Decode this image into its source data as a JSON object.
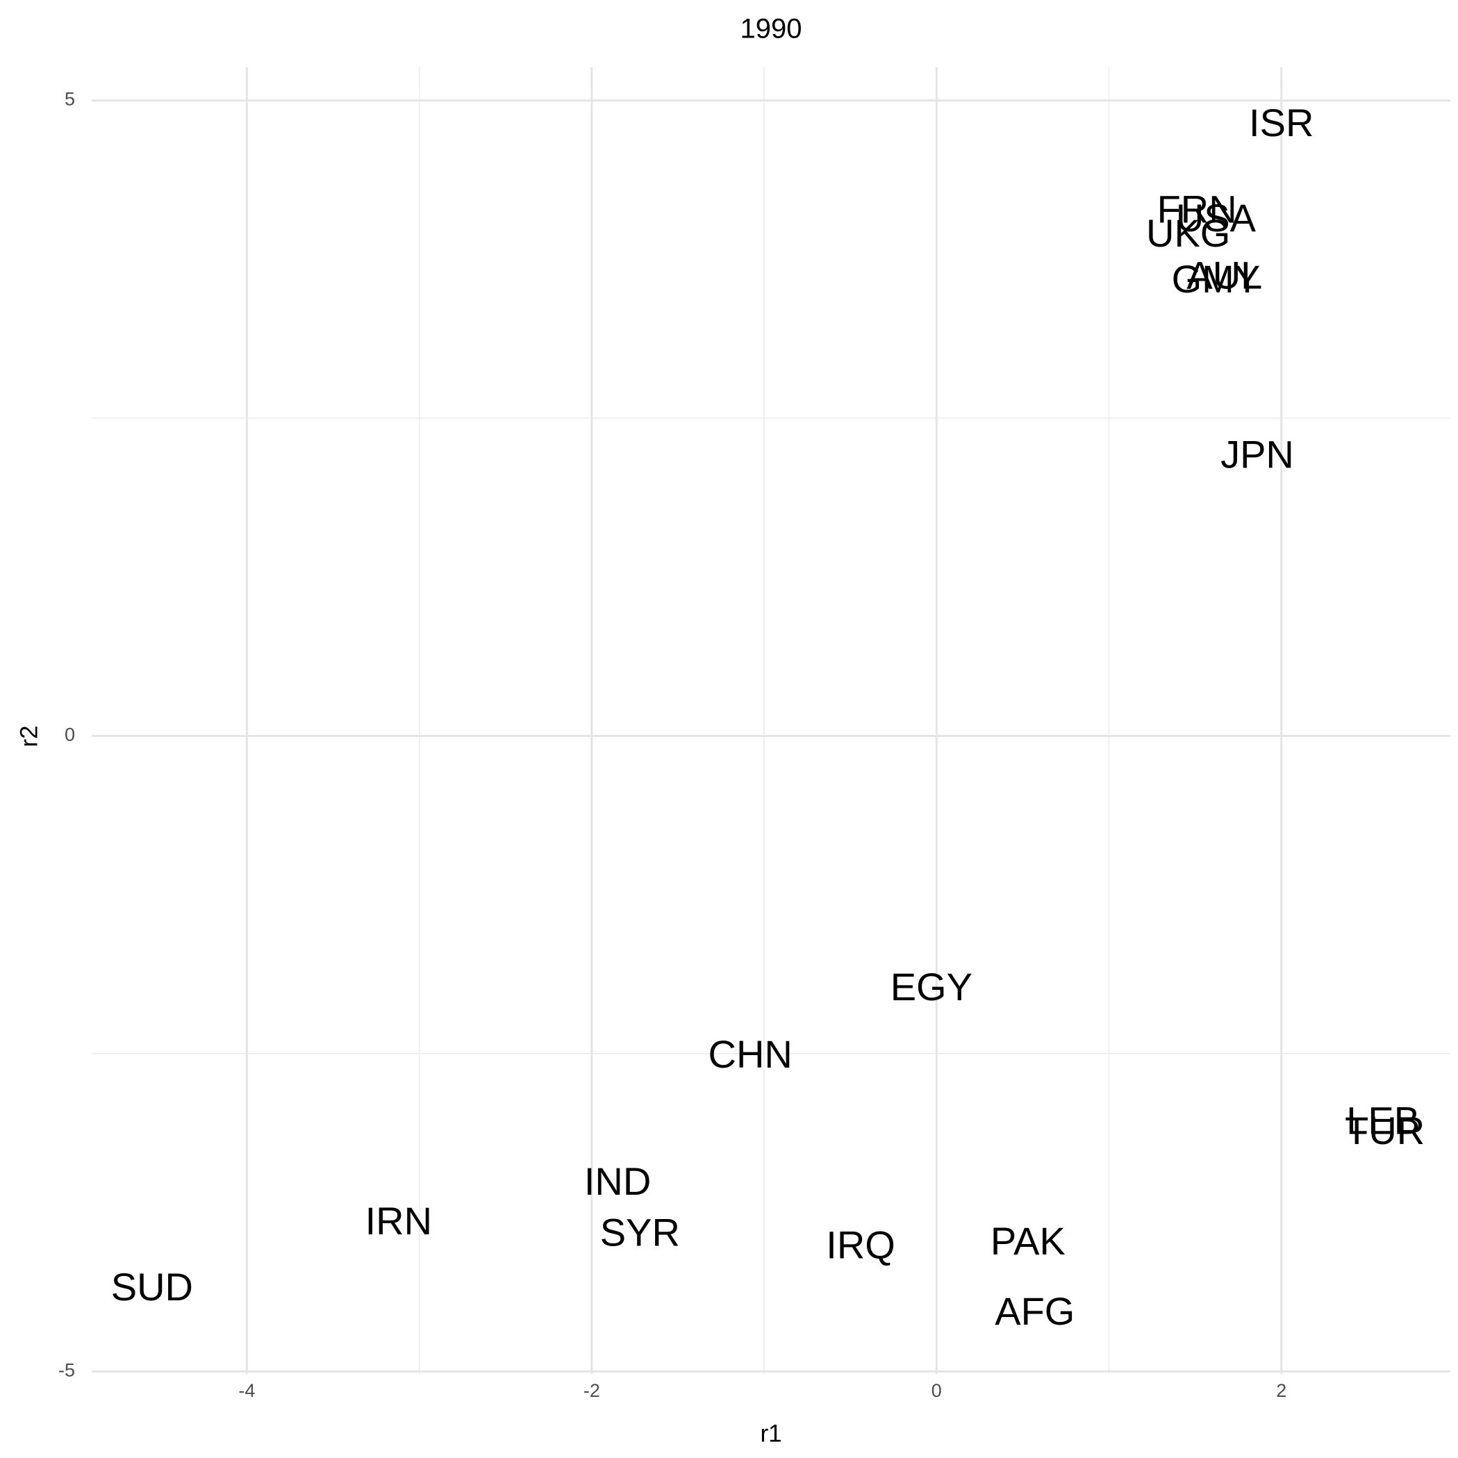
{
  "chart_data": {
    "type": "text-scatter",
    "title": "1990",
    "x_label": "r1",
    "y_label": "r2",
    "labels": [
      "ISR",
      "FRN",
      "USA",
      "UKG",
      "AUL",
      "GMY",
      "JPN",
      "EGY",
      "CHN",
      "LEB",
      "TUR",
      "IND",
      "IRN",
      "SYR",
      "IRQ",
      "PAK",
      "SUD",
      "AFG"
    ],
    "x": [
      2.0,
      1.51,
      1.62,
      1.46,
      1.67,
      1.62,
      1.86,
      -0.03,
      -1.08,
      2.59,
      2.6,
      -1.85,
      -3.12,
      -1.72,
      -0.44,
      0.53,
      -4.55,
      0.57
    ],
    "values": [
      4.8,
      4.12,
      4.05,
      3.93,
      3.6,
      3.57,
      2.19,
      -2.0,
      -2.53,
      -3.05,
      -3.13,
      -3.53,
      -3.84,
      -3.93,
      -4.03,
      -4.0,
      -4.36,
      -4.55
    ],
    "xlim": [
      -4.9,
      2.98
    ],
    "ylim": [
      -5.02,
      5.26
    ],
    "xticks": [
      -4,
      -2,
      0,
      2
    ],
    "yticks": [
      -5,
      0,
      5
    ],
    "x_minor_grid": [
      -3,
      -1,
      1
    ],
    "y_minor_grid": [
      -2.5,
      2.5
    ],
    "grid": true,
    "color": "#000000"
  }
}
